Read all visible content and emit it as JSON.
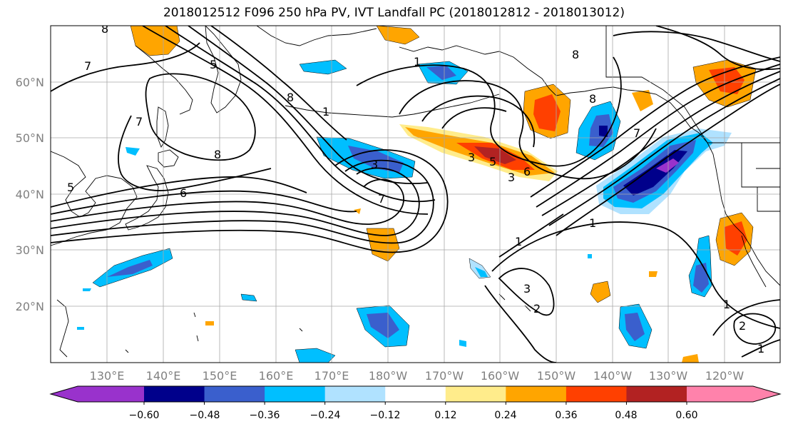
{
  "title": "2018012512 F096 250 hPa PV, IVT Landfall PC (2018012812 - 2018013012)",
  "map": {
    "lon_ticks": [
      "130°E",
      "140°E",
      "150°E",
      "160°E",
      "170°E",
      "180°W",
      "170°W",
      "160°W",
      "150°W",
      "140°W",
      "130°W",
      "120°W"
    ],
    "lat_ticks": [
      "60°N",
      "50°N",
      "40°N",
      "30°N",
      "20°N"
    ],
    "contour_labels": [
      "8",
      "7",
      "5",
      "8",
      "8",
      "7",
      "1",
      "5",
      "6",
      "7",
      "3",
      "1",
      "3",
      "5",
      "6",
      "3",
      "1",
      "1",
      "1",
      "3",
      "2",
      "1",
      "2",
      "8",
      "7",
      "8"
    ]
  },
  "colorbar": {
    "tick_labels": [
      "−0.60",
      "−0.48",
      "−0.36",
      "−0.24",
      "−0.12",
      "0.12",
      "0.24",
      "0.36",
      "0.48",
      "0.60"
    ],
    "colors": [
      "#9932cc",
      "#00008b",
      "#3a5fcd",
      "#00bfff",
      "#b0e2ff",
      "#ffffff",
      "#ffec8b",
      "#ffa500",
      "#ff4000",
      "#b22222",
      "#ff82ab"
    ]
  }
}
